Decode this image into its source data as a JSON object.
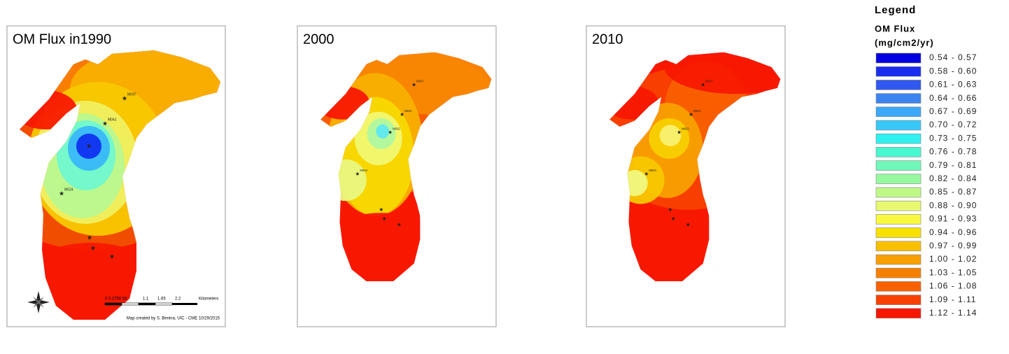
{
  "panels": [
    {
      "title": "OM Flux in1990",
      "stations": [
        "M047",
        "M041",
        "M024"
      ],
      "scale_labels": [
        "0 0.2750.55",
        "1.1",
        "1.65",
        "2.2",
        "Kilometers"
      ],
      "credit": "Map created by S. Benina, UIC - CME 10/29/2015"
    },
    {
      "title": "2000",
      "stations": [
        "M047",
        "M041",
        "M052",
        "M024"
      ]
    },
    {
      "title": "2010",
      "stations": [
        "M047",
        "M041",
        "M052",
        "M024"
      ]
    }
  ],
  "legend": {
    "title": "Legend",
    "heading": "OM Flux",
    "units": "(mg/cm2/yr)",
    "items": [
      {
        "label": "0.54 - 0.57",
        "color": "#0000e0"
      },
      {
        "label": "0.58 - 0.60",
        "color": "#1a2cf0"
      },
      {
        "label": "0.61 - 0.63",
        "color": "#3058f0"
      },
      {
        "label": "0.64 - 0.66",
        "color": "#3c84f0"
      },
      {
        "label": "0.67 - 0.69",
        "color": "#3ca8f8"
      },
      {
        "label": "0.70 - 0.72",
        "color": "#38c8f8"
      },
      {
        "label": "0.73 - 0.75",
        "color": "#30f0f0"
      },
      {
        "label": "0.76 - 0.78",
        "color": "#48f8d0"
      },
      {
        "label": "0.79 - 0.81",
        "color": "#70f8b8"
      },
      {
        "label": "0.82 - 0.84",
        "color": "#98f8a0"
      },
      {
        "label": "0.85 - 0.87",
        "color": "#c0f888"
      },
      {
        "label": "0.88 - 0.90",
        "color": "#e8f870"
      },
      {
        "label": "0.91 - 0.93",
        "color": "#f8f840"
      },
      {
        "label": "0.94 - 0.96",
        "color": "#f8e000"
      },
      {
        "label": "0.97 - 0.99",
        "color": "#f8c000"
      },
      {
        "label": "1.00 - 1.02",
        "color": "#f8a000"
      },
      {
        "label": "1.03 - 1.05",
        "color": "#f88000"
      },
      {
        "label": "1.06 - 1.08",
        "color": "#f86000"
      },
      {
        "label": "1.09 - 1.11",
        "color": "#f84000"
      },
      {
        "label": "1.12 - 1.14",
        "color": "#f81800"
      }
    ]
  }
}
